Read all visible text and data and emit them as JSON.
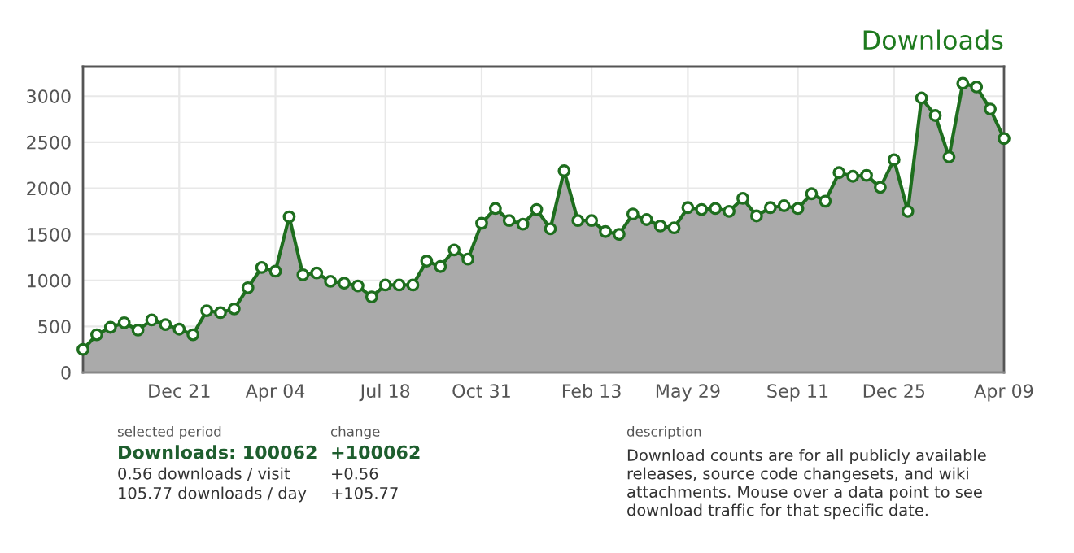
{
  "chart_data": {
    "type": "area",
    "title": "Downloads",
    "categories": [
      null,
      null,
      null,
      null,
      null,
      null,
      null,
      "Dec 21",
      null,
      null,
      null,
      null,
      null,
      null,
      "Apr 04",
      null,
      null,
      null,
      null,
      null,
      null,
      null,
      "Jul 18",
      null,
      null,
      null,
      null,
      null,
      null,
      "Oct 31",
      null,
      null,
      null,
      null,
      null,
      null,
      null,
      "Feb 13",
      null,
      null,
      null,
      null,
      null,
      null,
      "May 29",
      null,
      null,
      null,
      null,
      null,
      null,
      null,
      "Sep 11",
      null,
      null,
      null,
      null,
      null,
      null,
      "Dec 25",
      null,
      null,
      null,
      null,
      null,
      null,
      null,
      "Apr 09"
    ],
    "series": [
      {
        "color": "#1e6e1e",
        "values": [
          250,
          410,
          490,
          540,
          460,
          570,
          520,
          470,
          410,
          670,
          650,
          690,
          920,
          1140,
          1100,
          1690,
          1060,
          1080,
          990,
          970,
          940,
          820,
          950,
          950,
          950,
          1210,
          1150,
          1330,
          1230,
          1620,
          1780,
          1650,
          1610,
          1770,
          1560,
          2190,
          1650,
          1650,
          1530,
          1500,
          1720,
          1660,
          1590,
          1570,
          1790,
          1770,
          1780,
          1750,
          1890,
          1700,
          1790,
          1810,
          1780,
          1940,
          1860,
          2170,
          2130,
          2140,
          2010,
          2310,
          1750,
          2980,
          2790,
          2340,
          3140,
          3100,
          2860,
          2540
        ]
      }
    ],
    "ylim": [
      0,
      3320
    ],
    "yticks": [
      0,
      500,
      1000,
      1500,
      2000,
      2500,
      3000
    ],
    "grid": true,
    "marker": "circle",
    "line_style": "solid",
    "legend": false,
    "annotations": [
      "selected period",
      "Downloads: 100062",
      "0.56 downloads / visit",
      "105.77 downloads / day",
      "change",
      "+100062",
      "+0.56",
      "+105.77",
      "description",
      "Download counts are for all publicly available\nreleases, source code changesets, and wiki\nattachments. Mouse over a data point to see\ndownload traffic for that specific date."
    ]
  }
}
